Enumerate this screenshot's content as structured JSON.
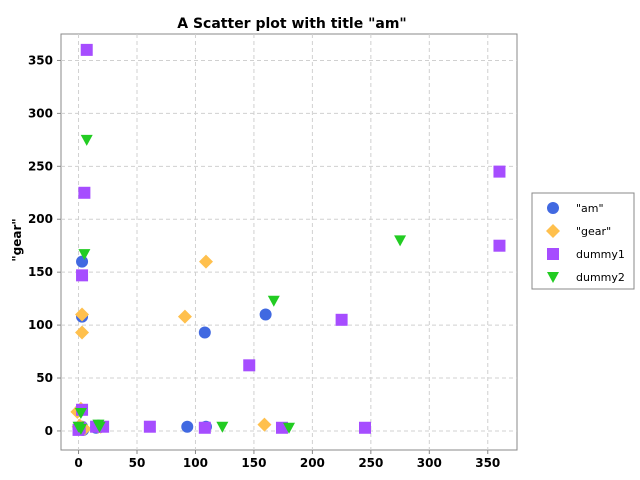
{
  "chart_data": {
    "type": "scatter",
    "title": "A Scatter plot with title \"am\"",
    "xlabel": "",
    "ylabel": "\"gear\"",
    "xlim": [
      -15,
      375
    ],
    "ylim": [
      -18,
      375
    ],
    "xticks": [
      0,
      50,
      100,
      150,
      200,
      250,
      300,
      350
    ],
    "yticks": [
      0,
      50,
      100,
      150,
      200,
      250,
      300,
      350
    ],
    "grid": true,
    "legend_position": "right",
    "series": [
      {
        "name": "\"am\"",
        "color": "#4169e1",
        "marker": "circle",
        "points": [
          [
            3,
            160
          ],
          [
            3,
            108
          ],
          [
            1,
            19
          ],
          [
            3,
            4
          ],
          [
            108,
            93
          ],
          [
            160,
            110
          ],
          [
            109,
            4
          ],
          [
            93,
            4
          ],
          [
            2,
            2
          ],
          [
            0,
            3
          ],
          [
            4,
            1
          ],
          [
            17,
            5
          ],
          [
            15,
            3
          ]
        ]
      },
      {
        "name": "\"gear\"",
        "color": "#ffc04d",
        "marker": "diamond",
        "points": [
          [
            3,
            110
          ],
          [
            3,
            93
          ],
          [
            2,
            21
          ],
          [
            -1,
            18
          ],
          [
            91,
            108
          ],
          [
            109,
            160
          ],
          [
            159,
            6
          ],
          [
            17,
            4
          ],
          [
            4,
            3
          ],
          [
            0,
            4
          ],
          [
            1,
            5
          ],
          [
            19,
            4
          ],
          [
            5,
            2
          ]
        ]
      },
      {
        "name": "dummy1",
        "color": "#a64dff",
        "marker": "square",
        "points": [
          [
            7,
            360
          ],
          [
            5,
            225
          ],
          [
            3,
            147
          ],
          [
            360,
            245
          ],
          [
            360,
            175
          ],
          [
            225,
            105
          ],
          [
            146,
            62
          ],
          [
            61,
            4
          ],
          [
            108,
            3
          ],
          [
            174,
            3
          ],
          [
            245,
            3
          ],
          [
            21,
            4
          ],
          [
            3,
            20
          ],
          [
            1,
            3
          ],
          [
            15,
            4
          ],
          [
            0,
            1
          ]
        ]
      },
      {
        "name": "dummy2",
        "color": "#22cc22",
        "marker": "triangle-down",
        "points": [
          [
            7,
            275
          ],
          [
            5,
            167
          ],
          [
            275,
            180
          ],
          [
            167,
            123
          ],
          [
            123,
            4
          ],
          [
            180,
            3
          ],
          [
            18,
            4
          ],
          [
            2,
            17
          ],
          [
            2,
            2
          ],
          [
            17,
            6
          ],
          [
            0,
            4
          ]
        ]
      }
    ]
  }
}
